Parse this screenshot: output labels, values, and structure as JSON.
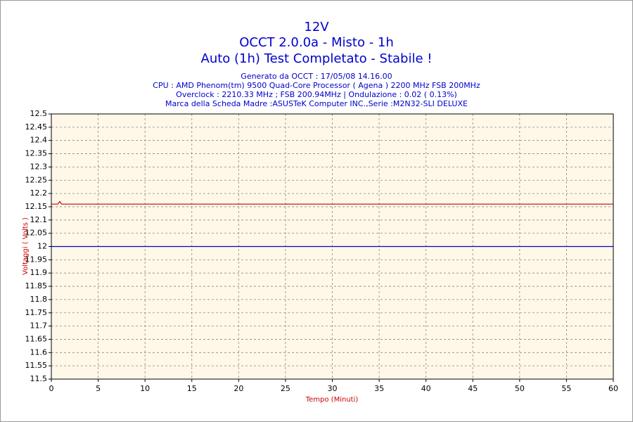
{
  "chart_data": {
    "type": "line",
    "title": "12V",
    "title_lines": [
      "OCCT 2.0.0a - Misto - 1h",
      "Auto (1h) Test Completato - Stabile !"
    ],
    "subtitle_lines": [
      "Generato da OCCT : 17/05/08 14.16.00",
      "CPU : AMD Phenom(tm) 9500 Quad-Core Processor ( Agena ) 2200 MHz FSB 200MHz",
      "Overclock : 2210.33 MHz ; FSB 200.94MHz | Ondulazione : 0.02 ( 0.13%)",
      "Marca della Scheda Madre :ASUSTeK Computer INC.,Serie :M2N32-SLI DELUXE"
    ],
    "x_label": "Tempo (Minuti)",
    "y_label": "Voltaggi ( Volts )",
    "xlim": [
      0,
      60
    ],
    "xticks": [
      0,
      5,
      10,
      15,
      20,
      25,
      30,
      35,
      40,
      45,
      50,
      55,
      60
    ],
    "ylim": [
      11.5,
      12.5
    ],
    "yticks": [
      12.5,
      12.45,
      12.4,
      12.35,
      12.3,
      12.25,
      12.2,
      12.15,
      12.1,
      12.05,
      12,
      11.95,
      11.9,
      11.85,
      11.8,
      11.75,
      11.7,
      11.65,
      11.6,
      11.55,
      11.5
    ],
    "grid": true,
    "plot_background": "#fff8e8",
    "series": [
      {
        "color": "#cc0000",
        "x": [
          0,
          0.7,
          0.9,
          1.1,
          60
        ],
        "values": [
          12.16,
          12.16,
          12.17,
          12.16,
          12.16
        ]
      },
      {
        "color": "#0000cc",
        "x": [
          0,
          60
        ],
        "values": [
          12,
          12
        ]
      }
    ]
  }
}
